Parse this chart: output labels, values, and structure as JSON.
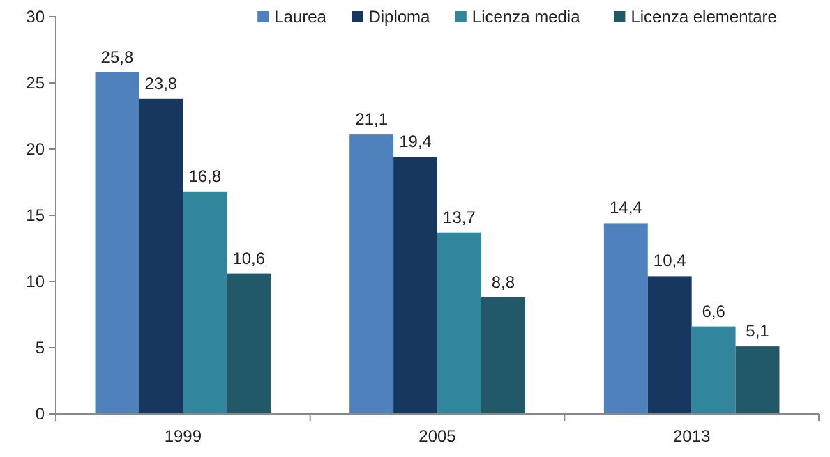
{
  "chart_data": {
    "type": "bar",
    "categories": [
      "1999",
      "2005",
      "2013"
    ],
    "series": [
      {
        "name": "Laurea",
        "color": "#4f81bd",
        "values": [
          25.8,
          21.1,
          14.4
        ],
        "value_labels": [
          "25,8",
          "21,1",
          "14,4"
        ]
      },
      {
        "name": "Diploma",
        "color": "#17375e",
        "values": [
          23.8,
          19.4,
          10.4
        ],
        "value_labels": [
          "23,8",
          "19,4",
          "10,4"
        ]
      },
      {
        "name": "Licenza media",
        "color": "#31859c",
        "values": [
          16.8,
          13.7,
          6.6
        ],
        "value_labels": [
          "16,8",
          "13,7",
          "6,6"
        ]
      },
      {
        "name": "Licenza elementare",
        "color": "#215968",
        "values": [
          10.6,
          8.8,
          5.1
        ],
        "value_labels": [
          "10,6",
          "8,8",
          "5,1"
        ]
      }
    ],
    "ylim": [
      0,
      30
    ],
    "yticks": [
      0,
      5,
      10,
      15,
      20,
      25,
      30
    ],
    "grid": false,
    "legend": "top right"
  }
}
